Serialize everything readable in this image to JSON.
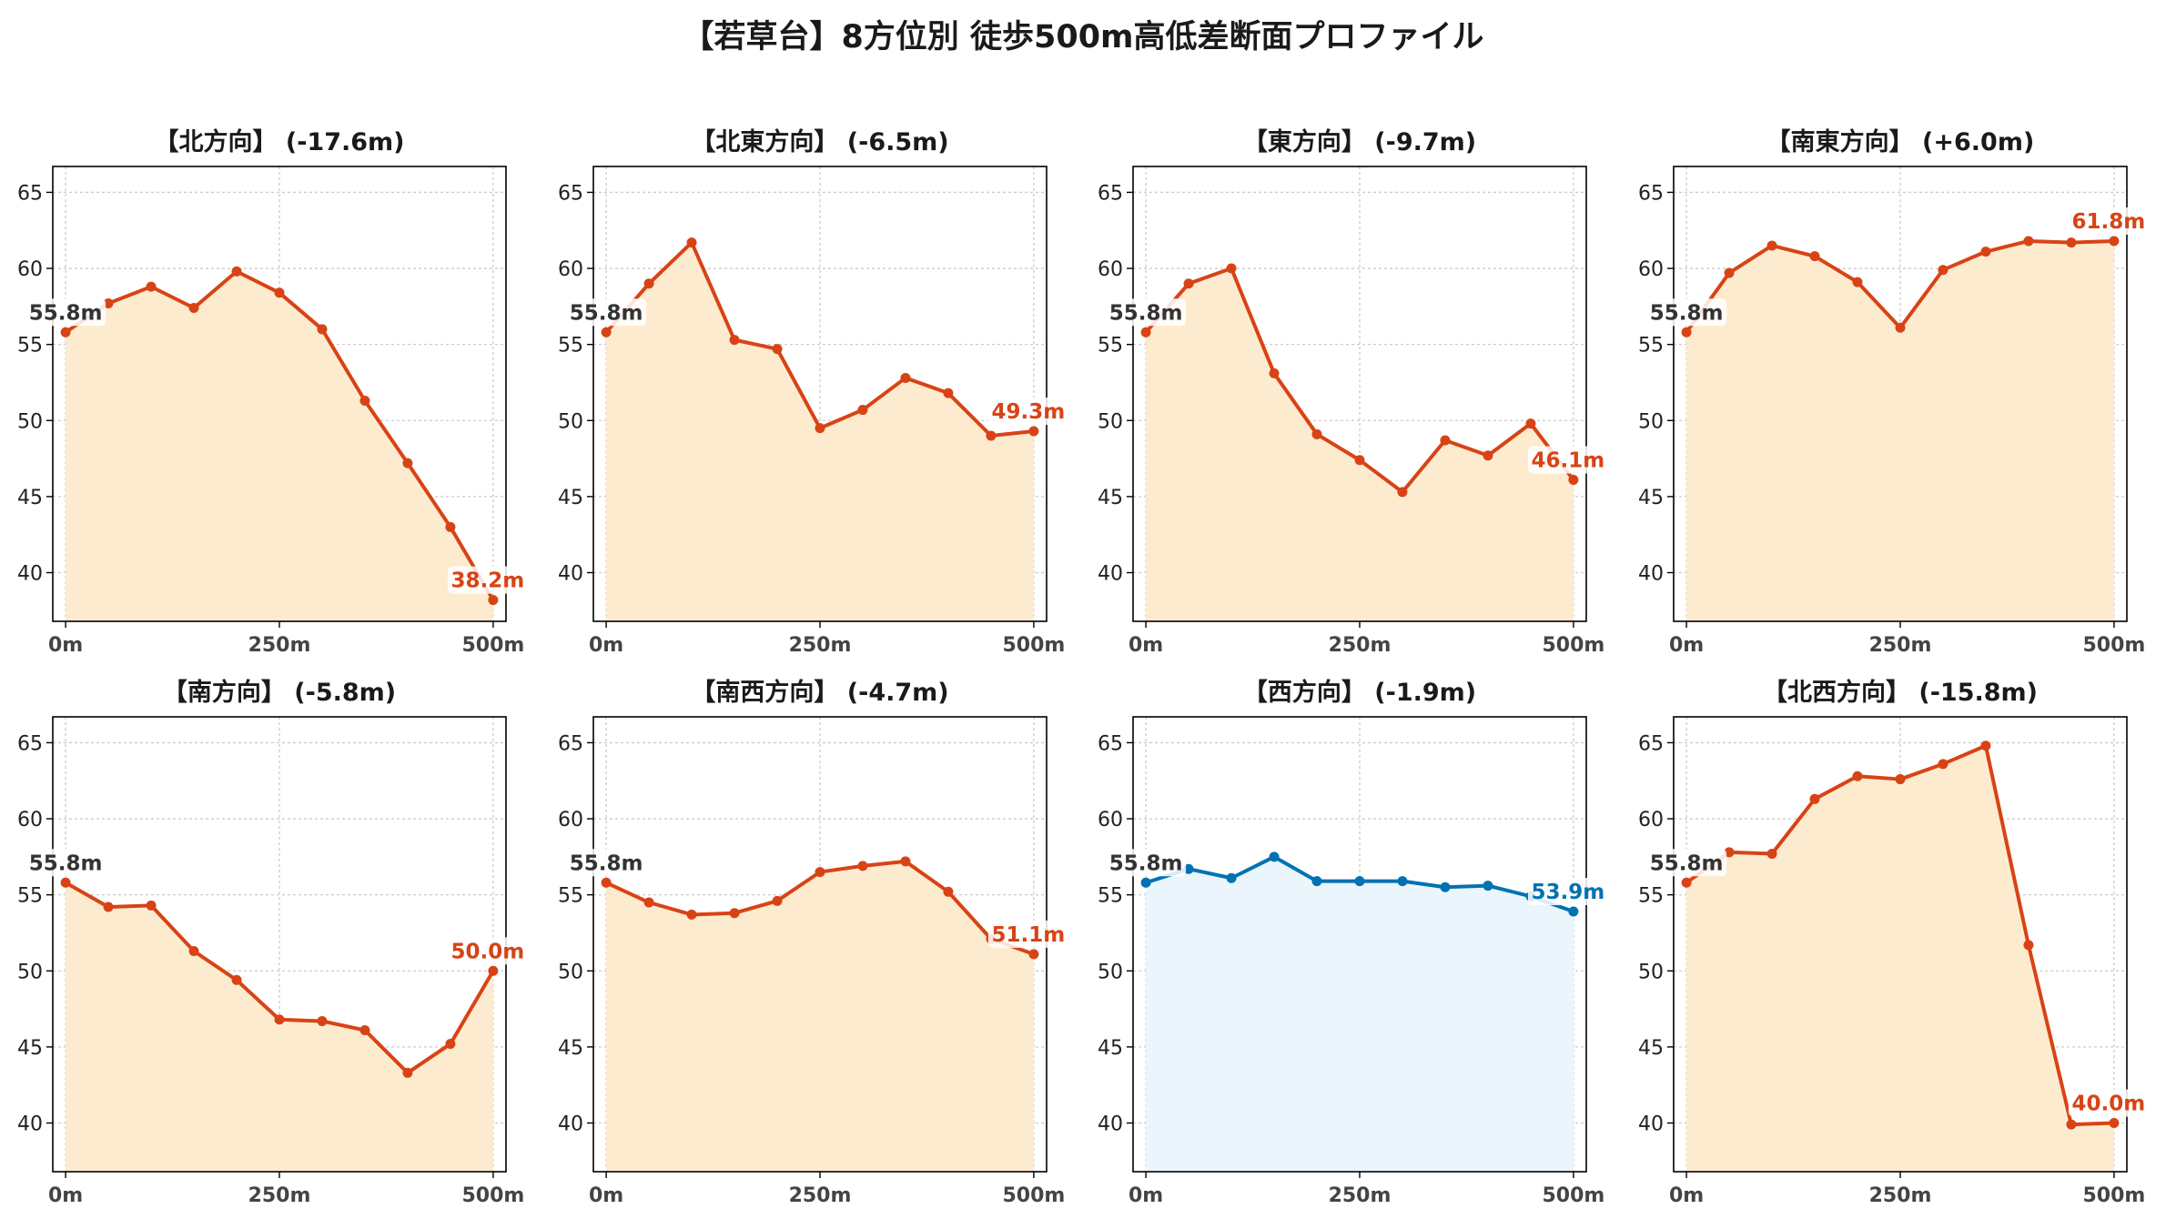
{
  "title": "【若草台】8方位別 徒歩500m高低差断面プロファイル",
  "colors": {
    "main": "#D84315",
    "main_fill": "#FDEBD0",
    "highlight": "#0072B2",
    "highlight_fill": "#EAF6FC",
    "grid": "#cccccc",
    "start_label": "#333333"
  },
  "chart_data": [
    {
      "type": "area",
      "title": "【北方向】 (-17.6m)",
      "start_label": "55.8m",
      "end_label": "38.2m",
      "highlight": false,
      "x": [
        0,
        50,
        100,
        150,
        200,
        250,
        300,
        350,
        400,
        450,
        500
      ],
      "values": [
        55.8,
        57.7,
        58.8,
        57.4,
        59.8,
        58.4,
        56.0,
        51.3,
        47.2,
        43.0,
        38.2
      ],
      "x_ticks": [
        "0m",
        "250m",
        "500m"
      ],
      "x_tick_values": [
        0,
        250,
        500
      ],
      "y_ticks": [
        40,
        45,
        50,
        55,
        60,
        65
      ],
      "xlim": [
        -15,
        515
      ],
      "ylim": [
        36.8,
        66.7
      ],
      "grid": true
    },
    {
      "type": "area",
      "title": "【北東方向】 (-6.5m)",
      "start_label": "55.8m",
      "end_label": "49.3m",
      "highlight": false,
      "x": [
        0,
        50,
        100,
        150,
        200,
        250,
        300,
        350,
        400,
        450,
        500
      ],
      "values": [
        55.8,
        59.0,
        61.7,
        55.3,
        54.7,
        49.5,
        50.7,
        52.8,
        51.8,
        49.0,
        49.3
      ],
      "x_ticks": [
        "0m",
        "250m",
        "500m"
      ],
      "x_tick_values": [
        0,
        250,
        500
      ],
      "y_ticks": [
        40,
        45,
        50,
        55,
        60,
        65
      ],
      "xlim": [
        -15,
        515
      ],
      "ylim": [
        36.8,
        66.7
      ],
      "grid": true
    },
    {
      "type": "area",
      "title": "【東方向】 (-9.7m)",
      "start_label": "55.8m",
      "end_label": "46.1m",
      "highlight": false,
      "x": [
        0,
        50,
        100,
        150,
        200,
        250,
        300,
        350,
        400,
        450,
        500
      ],
      "values": [
        55.8,
        59.0,
        60.0,
        53.1,
        49.1,
        47.4,
        45.3,
        48.7,
        47.7,
        49.8,
        46.1
      ],
      "x_ticks": [
        "0m",
        "250m",
        "500m"
      ],
      "x_tick_values": [
        0,
        250,
        500
      ],
      "y_ticks": [
        40,
        45,
        50,
        55,
        60,
        65
      ],
      "xlim": [
        -15,
        515
      ],
      "ylim": [
        36.8,
        66.7
      ],
      "grid": true
    },
    {
      "type": "area",
      "title": "【南東方向】 (+6.0m)",
      "start_label": "55.8m",
      "end_label": "61.8m",
      "highlight": false,
      "x": [
        0,
        50,
        100,
        150,
        200,
        250,
        300,
        350,
        400,
        450,
        500
      ],
      "values": [
        55.8,
        59.7,
        61.5,
        60.8,
        59.1,
        56.1,
        59.9,
        61.1,
        61.8,
        61.7,
        61.8
      ],
      "x_ticks": [
        "0m",
        "250m",
        "500m"
      ],
      "x_tick_values": [
        0,
        250,
        500
      ],
      "y_ticks": [
        40,
        45,
        50,
        55,
        60,
        65
      ],
      "xlim": [
        -15,
        515
      ],
      "ylim": [
        36.8,
        66.7
      ],
      "grid": true
    },
    {
      "type": "area",
      "title": "【南方向】 (-5.8m)",
      "start_label": "55.8m",
      "end_label": "50.0m",
      "highlight": false,
      "x": [
        0,
        50,
        100,
        150,
        200,
        250,
        300,
        350,
        400,
        450,
        500
      ],
      "values": [
        55.8,
        54.2,
        54.3,
        51.3,
        49.4,
        46.8,
        46.7,
        46.1,
        43.3,
        45.2,
        50.0
      ],
      "x_ticks": [
        "0m",
        "250m",
        "500m"
      ],
      "x_tick_values": [
        0,
        250,
        500
      ],
      "y_ticks": [
        40,
        45,
        50,
        55,
        60,
        65
      ],
      "xlim": [
        -15,
        515
      ],
      "ylim": [
        36.8,
        66.7
      ],
      "grid": true
    },
    {
      "type": "area",
      "title": "【南西方向】 (-4.7m)",
      "start_label": "55.8m",
      "end_label": "51.1m",
      "highlight": false,
      "x": [
        0,
        50,
        100,
        150,
        200,
        250,
        300,
        350,
        400,
        450,
        500
      ],
      "values": [
        55.8,
        54.5,
        53.7,
        53.8,
        54.6,
        56.5,
        56.9,
        57.2,
        55.2,
        52.1,
        51.1
      ],
      "x_ticks": [
        "0m",
        "250m",
        "500m"
      ],
      "x_tick_values": [
        0,
        250,
        500
      ],
      "y_ticks": [
        40,
        45,
        50,
        55,
        60,
        65
      ],
      "xlim": [
        -15,
        515
      ],
      "ylim": [
        36.8,
        66.7
      ],
      "grid": true
    },
    {
      "type": "area",
      "title": "【西方向】 (-1.9m)",
      "start_label": "55.8m",
      "end_label": "53.9m",
      "highlight": true,
      "x": [
        0,
        50,
        100,
        150,
        200,
        250,
        300,
        350,
        400,
        450,
        500
      ],
      "values": [
        55.8,
        56.7,
        56.1,
        57.5,
        55.9,
        55.9,
        55.9,
        55.5,
        55.6,
        54.9,
        53.9
      ],
      "x_ticks": [
        "0m",
        "250m",
        "500m"
      ],
      "x_tick_values": [
        0,
        250,
        500
      ],
      "y_ticks": [
        40,
        45,
        50,
        55,
        60,
        65
      ],
      "xlim": [
        -15,
        515
      ],
      "ylim": [
        36.8,
        66.7
      ],
      "grid": true
    },
    {
      "type": "area",
      "title": "【北西方向】 (-15.8m)",
      "start_label": "55.8m",
      "end_label": "40.0m",
      "highlight": false,
      "x": [
        0,
        50,
        100,
        150,
        200,
        250,
        300,
        350,
        400,
        450,
        500
      ],
      "values": [
        55.8,
        57.8,
        57.7,
        61.3,
        62.8,
        62.6,
        63.6,
        64.8,
        51.7,
        39.9,
        40.0
      ],
      "x_ticks": [
        "0m",
        "250m",
        "500m"
      ],
      "x_tick_values": [
        0,
        250,
        500
      ],
      "y_ticks": [
        40,
        45,
        50,
        55,
        60,
        65
      ],
      "xlim": [
        -15,
        515
      ],
      "ylim": [
        36.8,
        66.7
      ],
      "grid": true
    }
  ]
}
